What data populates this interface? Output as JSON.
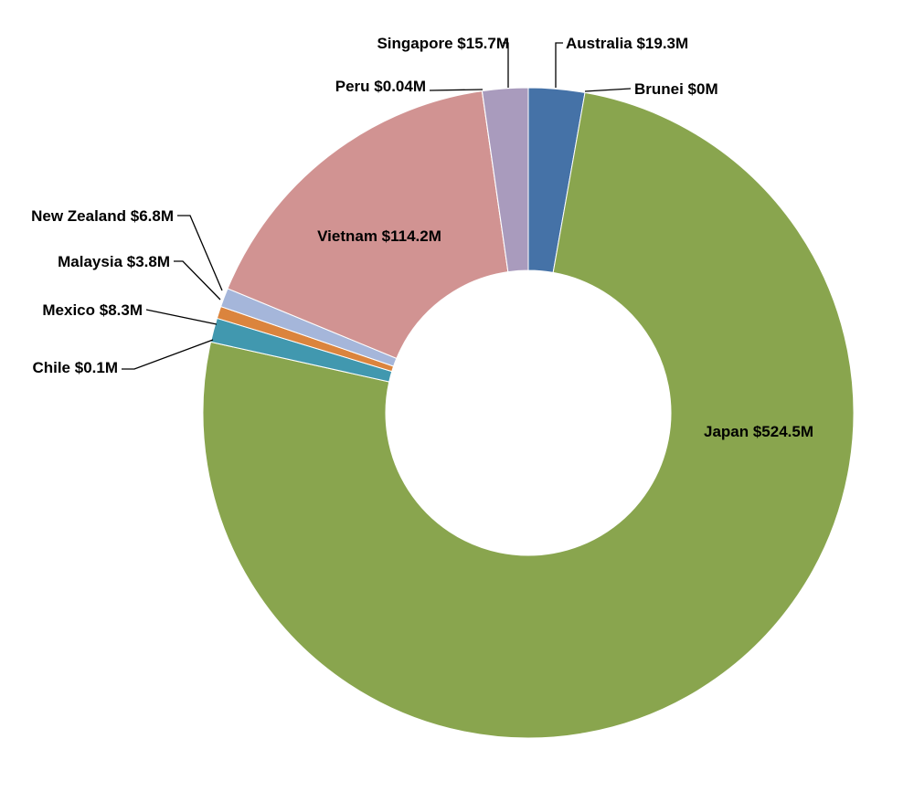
{
  "chart_data": {
    "type": "pie",
    "subtype": "doughnut",
    "title": "",
    "series": [
      {
        "values": [
          19.3,
          0,
          524.5,
          0.1,
          8.3,
          3.8,
          6.8,
          114.2,
          0.04,
          15.7
        ]
      }
    ],
    "categories": [
      "Australia",
      "Brunei",
      "Japan",
      "Chile",
      "Mexico",
      "Malaysia",
      "New Zealand",
      "Vietnam",
      "Peru",
      "Singapore"
    ],
    "slices": [
      {
        "name": "Australia",
        "value": 19.3,
        "label": "Australia $19.3M",
        "color": "#4572A7"
      },
      {
        "name": "Brunei",
        "value": 0,
        "label": "Brunei $0M",
        "color": "#AA4643"
      },
      {
        "name": "Japan",
        "value": 524.5,
        "label": "Japan $524.5M",
        "color": "#89A54E"
      },
      {
        "name": "Chile",
        "value": 0.1,
        "label": "Chile $0.1M",
        "color": "#4198AF"
      },
      {
        "name": "Mexico",
        "value": 8.3,
        "label": "Mexico $8.3M",
        "color": "#DB843D"
      },
      {
        "name": "Malaysia",
        "value": 3.8,
        "label": "Malaysia $3.8M",
        "color": "#93A9CF"
      },
      {
        "name": "New Zealand",
        "value": 6.8,
        "label": "New Zealand $6.8M",
        "color": "#D19392"
      },
      {
        "name": "Vietnam",
        "value": 114.2,
        "label": "Vietnam $114.2M",
        "color": "#D19392"
      },
      {
        "name": "Peru",
        "value": 0.04,
        "label": "Peru $0.04M",
        "color": "#B9CD96"
      },
      {
        "name": "Singapore",
        "value": 15.7,
        "label": "Singapore $15.7M",
        "color": "#A99BBD"
      }
    ],
    "legend": "none"
  }
}
